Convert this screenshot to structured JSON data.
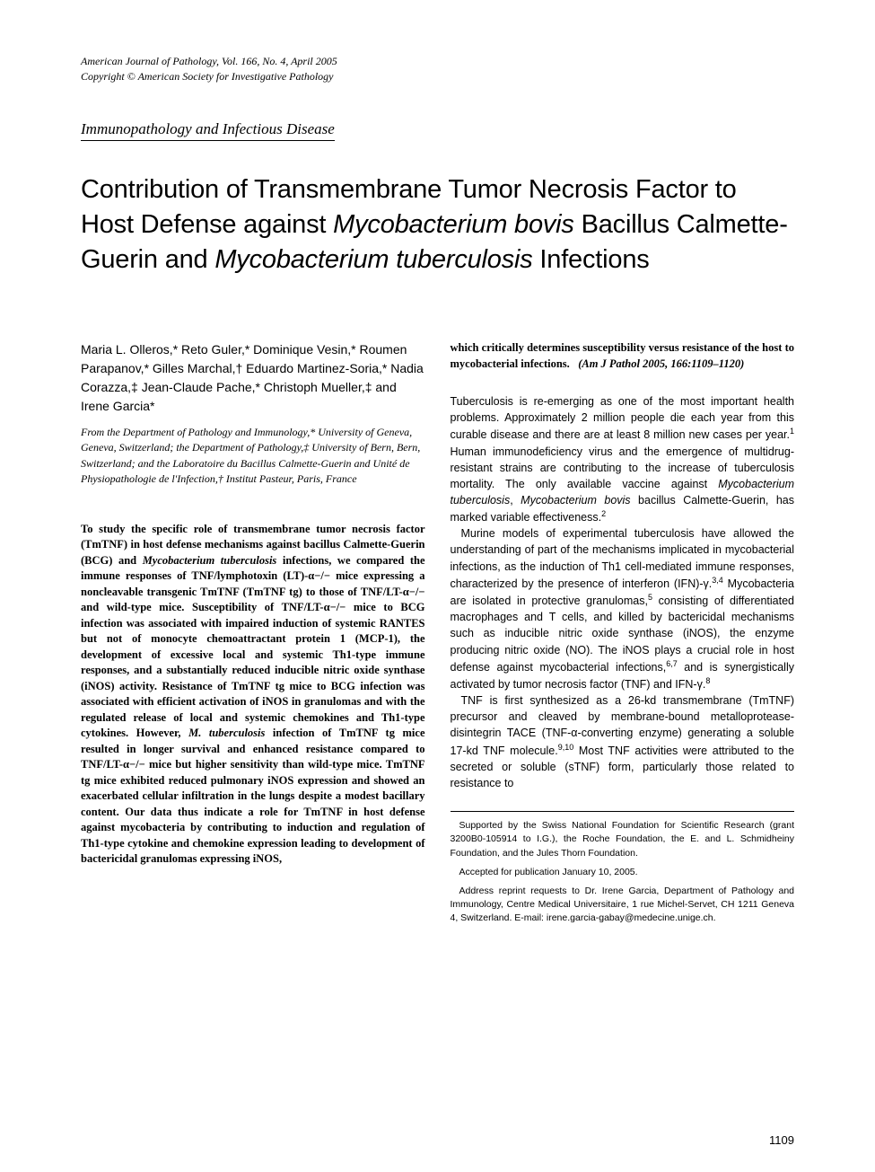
{
  "header": {
    "journal_line": "American Journal of Pathology, Vol. 166, No. 4, April 2005",
    "copyright_line": "Copyright © American Society for Investigative Pathology"
  },
  "section_label": "Immunopathology and Infectious Disease",
  "title": {
    "part1": "Contribution of Transmembrane Tumor Necrosis Factor to Host Defense against ",
    "ital1": "Mycobacterium bovis",
    "part2": " Bacillus Calmette-Guerin and ",
    "ital2": "Mycobacterium tuberculosis",
    "part3": " Infections"
  },
  "authors": "Maria L. Olleros,* Reto Guler,* Dominique Vesin,* Roumen Parapanov,* Gilles Marchal,† Eduardo Martinez-Soria,* Nadia Corazza,‡ Jean-Claude Pache,* Christoph Mueller,‡ and Irene Garcia*",
  "affiliations": "From the Department of Pathology and Immunology,* University of Geneva, Geneva, Switzerland; the Department of Pathology,‡ University of Bern, Bern, Switzerland; and the Laboratoire du Bacillus Calmette-Guerin and Unité de Physiopathologie de l'Infection,† Institut Pasteur, Paris, France",
  "abstract": {
    "p1a": "To study the specific role of transmembrane tumor necrosis factor (TmTNF) in host defense mechanisms against bacillus Calmette-Guerin (BCG) and ",
    "p1_ital1": "Mycobacterium tuberculosis",
    "p1b": " infections, we compared the immune responses of TNF/lymphotoxin (LT)-α−/− mice expressing a noncleavable transgenic TmTNF (TmTNF tg) to those of TNF/LT-α−/− and wild-type mice. Susceptibility of TNF/LT-α−/− mice to BCG infection was associated with impaired induction of systemic RANTES but not of monocyte chemoattractant protein 1 (MCP-1), the development of excessive local and systemic Th1-type immune responses, and a substantially reduced inducible nitric oxide synthase (iNOS) activity. Resistance of TmTNF tg mice to BCG infection was associated with efficient activation of iNOS in granulomas and with the regulated release of local and systemic chemokines and Th1-type cytokines. However, ",
    "p1_ital2": "M. tuberculosis",
    "p1c": " infection of TmTNF tg mice resulted in longer survival and enhanced resistance compared to TNF/LT-α−/− mice but higher sensitivity than wild-type mice. TmTNF tg mice exhibited reduced pulmonary iNOS expression and showed an exacerbated cellular infiltration in the lungs despite a modest bacillary content. Our data thus indicate a role for TmTNF in host defense against mycobacteria by contributing to induction and regulation of Th1-type cytokine and chemokine expression leading to development of bactericidal granulomas expressing iNOS,",
    "cont": "which critically determines susceptibility versus resistance of the host to mycobacterial infections.",
    "citation": "(Am J Pathol 2005, 166:1109–1120)"
  },
  "body": {
    "p1a": "Tuberculosis is re-emerging as one of the most important health problems. Approximately 2 million people die each year from this curable disease and there are at least 8 million new cases per year.",
    "p1_sup1": "1",
    "p1b": " Human immunodeficiency virus and the emergence of multidrug-resistant strains are contributing to the increase of tuberculosis mortality. The only available vaccine against ",
    "p1_ital1": "Mycobacterium tuberculosis",
    "p1c": ", ",
    "p1_ital2": "Mycobacterium bovis",
    "p1d": " bacillus Calmette-Guerin, has marked variable effectiveness.",
    "p1_sup2": "2",
    "p2a": "Murine models of experimental tuberculosis have allowed the understanding of part of the mechanisms implicated in mycobacterial infections, as the induction of Th1 cell-mediated immune responses, characterized by the presence of interferon (IFN)-γ.",
    "p2_sup1": "3,4",
    "p2b": " Mycobacteria are isolated in protective granulomas,",
    "p2_sup2": "5",
    "p2c": " consisting of differentiated macrophages and T cells, and killed by bactericidal mechanisms such as inducible nitric oxide synthase (iNOS), the enzyme producing nitric oxide (NO). The iNOS plays a crucial role in host defense against mycobacterial infections,",
    "p2_sup3": "6,7",
    "p2d": " and is synergistically activated by tumor necrosis factor (TNF) and IFN-γ.",
    "p2_sup4": "8",
    "p3a": "TNF is first synthesized as a 26-kd transmembrane (TmTNF) precursor and cleaved by membrane-bound metalloprotease-disintegrin TACE (TNF-α-converting enzyme) generating a soluble 17-kd TNF molecule.",
    "p3_sup1": "9,10",
    "p3b": " Most TNF activities were attributed to the secreted or soluble (sTNF) form, particularly those related to resistance to"
  },
  "footnotes": {
    "f1": "Supported by the Swiss National Foundation for Scientific Research (grant 3200B0-105914 to I.G.), the Roche Foundation, the E. and L. Schmidheiny Foundation, and the Jules Thorn Foundation.",
    "f2": "Accepted for publication January 10, 2005.",
    "f3": "Address reprint requests to Dr. Irene Garcia, Department of Pathology and Immunology, Centre Medical Universitaire, 1 rue Michel-Servet, CH 1211 Geneva 4, Switzerland. E-mail: irene.garcia-gabay@medecine.unige.ch."
  },
  "page_number": "1109"
}
